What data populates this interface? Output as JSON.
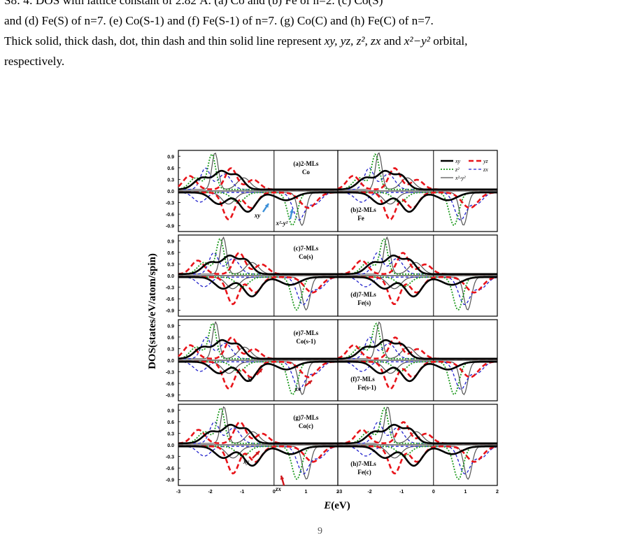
{
  "caption": {
    "line0": "S8: 4: DOS with lattice constant of 2.82 Å. (a) Co and (b) Fe of n=2. (c) Co(S)",
    "line1": "and (d) Fe(S) of n=7. (e) Co(S-1) and (f) Fe(S-1) of n=7. (g) Co(C) and (h) Fe(C) of n=7.",
    "line2_a": "Thick solid, thick dash, dot, thin dash and thin solid line represent ",
    "line2_italic": "xy, yz, z², zx",
    "line2_b": " and ",
    "line2_italic2": "x²−y²",
    "line2_c": " orbital,",
    "line3": "respectively."
  },
  "figure": {
    "ylabel": "DOS(states/eV/atom/spin)",
    "xlabel_italic": "E",
    "xlabel_rest": "(eV)",
    "yticks": [
      "0.9",
      "0.6",
      "0.3",
      "0.0",
      "-0.3",
      "-0.6",
      "-0.9"
    ],
    "xticks": [
      "-3",
      "-2",
      "-1",
      "0",
      "1",
      "2"
    ],
    "panels": [
      {
        "id": "a",
        "label1": "(a)2-MLs",
        "label2": "Co"
      },
      {
        "id": "b",
        "label1": "(b)2-MLs",
        "label2": "Fe"
      },
      {
        "id": "c",
        "label1": "(c)7-MLs",
        "label2": "Co(s)"
      },
      {
        "id": "d",
        "label1": "(d)7-MLs",
        "label2": "Fe(s)"
      },
      {
        "id": "e",
        "label1": "(e)7-MLs",
        "label2": "Co(s-1)"
      },
      {
        "id": "f",
        "label1": "(f)7-MLs",
        "label2": "Fe(s-1)"
      },
      {
        "id": "g",
        "label1": "(g)7-MLs",
        "label2": "Co(c)"
      },
      {
        "id": "h",
        "label1": "(h)7-MLs",
        "label2": "Fe(c)"
      }
    ],
    "legend": [
      {
        "label": "xy",
        "style": "thick-solid"
      },
      {
        "label": "yz",
        "style": "thick-dash"
      },
      {
        "label": "z²",
        "style": "dot"
      },
      {
        "label": "zx",
        "style": "thin-dash"
      },
      {
        "label": "x²-y²",
        "style": "thin-solid"
      }
    ],
    "annotations": [
      {
        "panel": "a",
        "text": "xy",
        "arrow": "blue"
      },
      {
        "panel": "a",
        "text": "x²-y²",
        "arrow": "blue"
      },
      {
        "panel": "e",
        "text": "xy",
        "arrow": "red"
      },
      {
        "panel": "e",
        "text": "zx",
        "arrow": "red"
      },
      {
        "panel": "g",
        "text": "xy",
        "arrow": "red"
      },
      {
        "panel": "g",
        "text": "zx",
        "arrow": "red"
      }
    ],
    "colors": {
      "xy": "#000000",
      "yz": "#e8141a",
      "z2": "#1f9a1f",
      "zx": "#2222cc",
      "x2y2": "#555555",
      "arrow_blue": "#3a8fd8",
      "arrow_red": "#d0161b"
    }
  },
  "page_number": "9"
}
